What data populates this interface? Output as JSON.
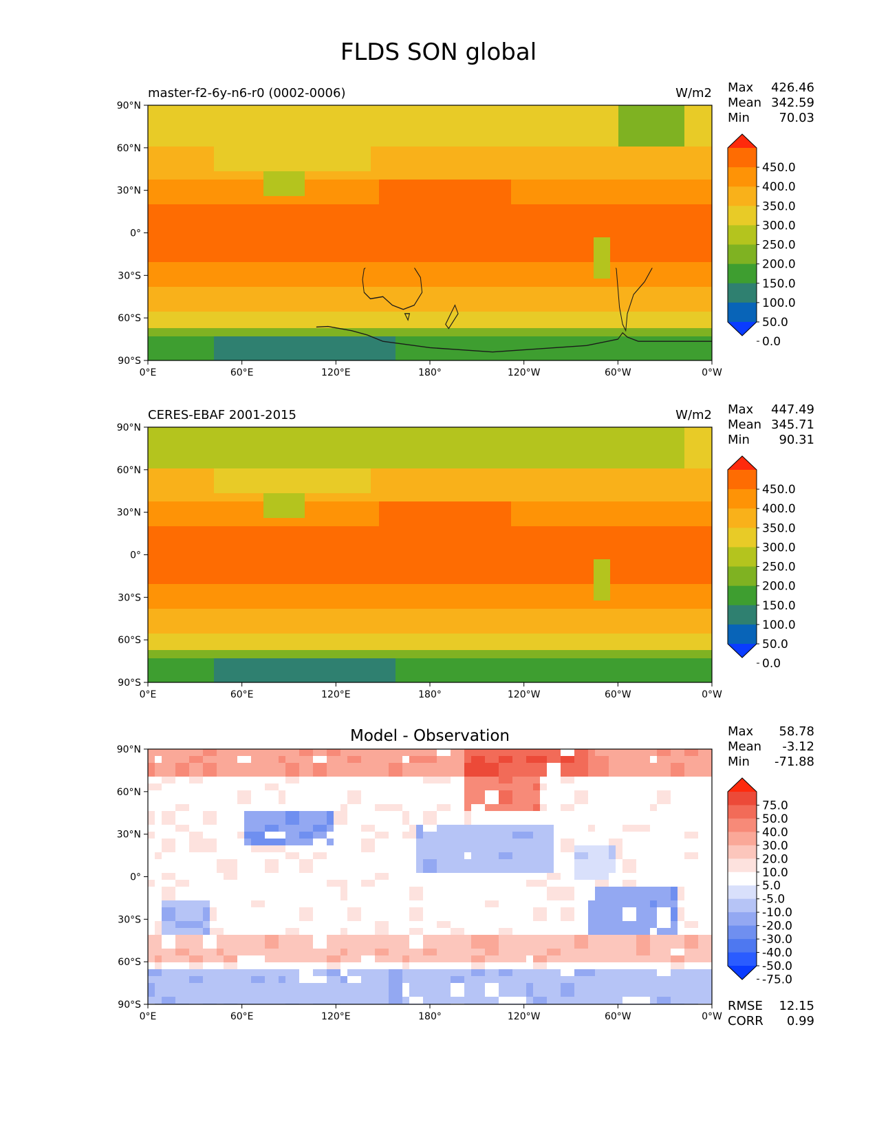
{
  "title": "FLDS SON global",
  "colors": {
    "abs": [
      "#0a3cff",
      "#0864b8",
      "#2f8070",
      "#3e9e30",
      "#7fb222",
      "#b4c41e",
      "#e8cb27",
      "#f9b11a",
      "#fe9306",
      "#fe6c02",
      "#fe2a0c"
    ],
    "diff": [
      "#0a3cff",
      "#2a5cff",
      "#4e78f0",
      "#6f8ff0",
      "#93a8f2",
      "#b6c4f6",
      "#d9e0fb",
      "#ffffff",
      "#fde2de",
      "#fcc6bc",
      "#faa898",
      "#f78a78",
      "#f26b58",
      "#ec4a38",
      "#fe2a0c"
    ]
  },
  "axes": {
    "lat_ticks": [
      "90°N",
      "60°N",
      "30°N",
      "0°",
      "30°S",
      "60°S",
      "90°S"
    ],
    "lon_ticks": [
      "0°E",
      "60°E",
      "120°E",
      "180°",
      "120°W",
      "60°W",
      "0°W"
    ]
  },
  "panels": [
    {
      "left_title": "master-f2-6y-n6-r0 (0002-0006)",
      "center_title": "",
      "units": "W/m2",
      "stats": [
        {
          "label": "Max",
          "value": "426.46"
        },
        {
          "label": "Mean",
          "value": "342.59"
        },
        {
          "label": "Min",
          "value": "70.03"
        }
      ],
      "colorbar": "abs",
      "levels": [
        "450.0",
        "400.0",
        "350.0",
        "300.0",
        "250.0",
        "200.0",
        "150.0",
        "100.0",
        "50.0",
        "0.0"
      ],
      "footer": []
    },
    {
      "left_title": "CERES-EBAF 2001-2015",
      "center_title": "",
      "units": "W/m2",
      "stats": [
        {
          "label": "Max",
          "value": "447.49"
        },
        {
          "label": "Mean",
          "value": "345.71"
        },
        {
          "label": "Min",
          "value": "90.31"
        }
      ],
      "colorbar": "abs",
      "levels": [
        "450.0",
        "400.0",
        "350.0",
        "300.0",
        "250.0",
        "200.0",
        "150.0",
        "100.0",
        "50.0",
        "0.0"
      ],
      "footer": []
    },
    {
      "left_title": "",
      "center_title": "Model - Observation",
      "units": "",
      "stats": [
        {
          "label": "Max",
          "value": "58.78"
        },
        {
          "label": "Mean",
          "value": "-3.12"
        },
        {
          "label": "Min",
          "value": "-71.88"
        }
      ],
      "colorbar": "diff",
      "levels": [
        "75.0",
        "50.0",
        "40.0",
        "30.0",
        "20.0",
        "10.0",
        "5.0",
        "-5.0",
        "-10.0",
        "-20.0",
        "-30.0",
        "-40.0",
        "-50.0",
        "-75.0"
      ],
      "footer": [
        {
          "label": "RMSE",
          "value": "12.15"
        },
        {
          "label": "CORR",
          "value": "0.99"
        }
      ]
    }
  ]
}
